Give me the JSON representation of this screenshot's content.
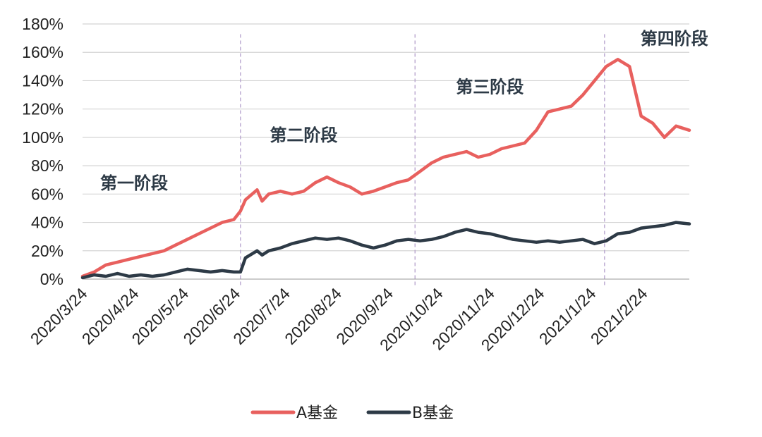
{
  "chart_data": {
    "type": "line",
    "title": "",
    "xlabel": "",
    "ylabel": "",
    "ylim": [
      0,
      180
    ],
    "y_ticks": [
      "0%",
      "20%",
      "40%",
      "60%",
      "80%",
      "100%",
      "120%",
      "140%",
      "160%",
      "180%"
    ],
    "x_ticks": [
      "2020/3/24",
      "2020/4/24",
      "2020/5/24",
      "2020/6/24",
      "2020/7/24",
      "2020/8/24",
      "2020/9/24",
      "2020/10/24",
      "2020/11/24",
      "2020/12/24",
      "2021/1/24",
      "2021/2/24"
    ],
    "x_start": "2020/3/24",
    "x_end": "2021/3/24",
    "grid": "horizontal",
    "legend_position": "bottom-center",
    "stage_labels": [
      {
        "text": "第一阶段",
        "x": "2020/4/24",
        "y": 68
      },
      {
        "text": "第二阶段",
        "x": "2020/8/4",
        "y": 102
      },
      {
        "text": "第三阶段",
        "x": "2020/11/24",
        "y": 136
      },
      {
        "text": "第四阶段",
        "x": "2021/3/15",
        "y": 170
      }
    ],
    "stage_dividers": [
      "2020/6/27",
      "2020/10/10",
      "2021/2/1"
    ],
    "series": [
      {
        "name": "A基金",
        "color": "#e8605e",
        "x": [
          "2020/3/24",
          "2020/3/31",
          "2020/4/7",
          "2020/4/14",
          "2020/4/21",
          "2020/4/28",
          "2020/5/5",
          "2020/5/12",
          "2020/5/19",
          "2020/5/26",
          "2020/6/2",
          "2020/6/9",
          "2020/6/16",
          "2020/6/23",
          "2020/6/27",
          "2020/6/30",
          "2020/7/7",
          "2020/7/10",
          "2020/7/14",
          "2020/7/21",
          "2020/7/28",
          "2020/8/4",
          "2020/8/11",
          "2020/8/18",
          "2020/8/25",
          "2020/9/1",
          "2020/9/8",
          "2020/9/15",
          "2020/9/22",
          "2020/9/29",
          "2020/10/6",
          "2020/10/13",
          "2020/10/20",
          "2020/10/27",
          "2020/11/3",
          "2020/11/10",
          "2020/11/17",
          "2020/11/24",
          "2020/12/1",
          "2020/12/8",
          "2020/12/15",
          "2020/12/22",
          "2020/12/29",
          "2021/1/5",
          "2021/1/12",
          "2021/1/19",
          "2021/1/26",
          "2021/2/2",
          "2021/2/9",
          "2021/2/16",
          "2021/2/23",
          "2021/3/2",
          "2021/3/9",
          "2021/3/16",
          "2021/3/24"
        ],
        "values": [
          2,
          5,
          10,
          12,
          14,
          16,
          18,
          20,
          24,
          28,
          32,
          36,
          40,
          42,
          48,
          56,
          63,
          55,
          60,
          62,
          60,
          62,
          68,
          72,
          68,
          65,
          60,
          62,
          65,
          68,
          70,
          76,
          82,
          86,
          88,
          90,
          86,
          88,
          92,
          94,
          96,
          105,
          118,
          120,
          122,
          130,
          140,
          150,
          155,
          150,
          115,
          110,
          100,
          108,
          105
        ]
      },
      {
        "name": "B基金",
        "color": "#2d3a46",
        "x": [
          "2020/3/24",
          "2020/3/31",
          "2020/4/7",
          "2020/4/14",
          "2020/4/21",
          "2020/4/28",
          "2020/5/5",
          "2020/5/12",
          "2020/5/19",
          "2020/5/26",
          "2020/6/2",
          "2020/6/9",
          "2020/6/16",
          "2020/6/23",
          "2020/6/27",
          "2020/6/30",
          "2020/7/7",
          "2020/7/10",
          "2020/7/14",
          "2020/7/21",
          "2020/7/28",
          "2020/8/4",
          "2020/8/11",
          "2020/8/18",
          "2020/8/25",
          "2020/9/1",
          "2020/9/8",
          "2020/9/15",
          "2020/9/22",
          "2020/9/29",
          "2020/10/6",
          "2020/10/13",
          "2020/10/20",
          "2020/10/27",
          "2020/11/3",
          "2020/11/10",
          "2020/11/17",
          "2020/11/24",
          "2020/12/1",
          "2020/12/8",
          "2020/12/15",
          "2020/12/22",
          "2020/12/29",
          "2021/1/5",
          "2021/1/12",
          "2021/1/19",
          "2021/1/26",
          "2021/2/2",
          "2021/2/9",
          "2021/2/16",
          "2021/2/23",
          "2021/3/2",
          "2021/3/9",
          "2021/3/16",
          "2021/3/24"
        ],
        "values": [
          1,
          3,
          2,
          4,
          2,
          3,
          2,
          3,
          5,
          7,
          6,
          5,
          6,
          5,
          5,
          15,
          20,
          17,
          20,
          22,
          25,
          27,
          29,
          28,
          29,
          27,
          24,
          22,
          24,
          27,
          28,
          27,
          28,
          30,
          33,
          35,
          33,
          32,
          30,
          28,
          27,
          26,
          27,
          26,
          27,
          28,
          25,
          27,
          32,
          33,
          36,
          37,
          38,
          40,
          39
        ]
      }
    ]
  }
}
